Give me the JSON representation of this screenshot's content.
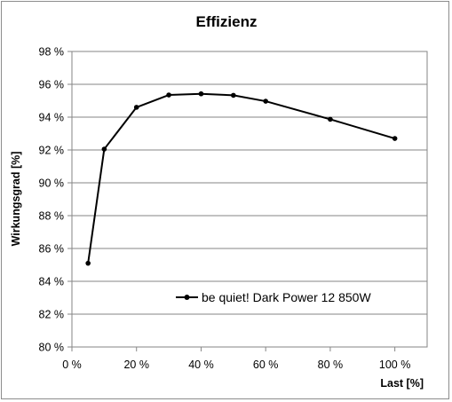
{
  "chart_data": {
    "type": "line",
    "title": "Effizienz",
    "xlabel": "Last [%]",
    "ylabel": "Wirkungsgrad [%]",
    "xlim": [
      0,
      110
    ],
    "ylim": [
      80,
      98
    ],
    "xticks": [
      0,
      20,
      40,
      60,
      80,
      100
    ],
    "yticks": [
      80,
      82,
      84,
      86,
      88,
      90,
      92,
      94,
      96,
      98
    ],
    "xtick_labels": [
      "0 %",
      "20 %",
      "40 %",
      "60 %",
      "80 %",
      "100 %"
    ],
    "ytick_labels": [
      "80 %",
      "82 %",
      "84 %",
      "86 %",
      "88 %",
      "90 %",
      "92 %",
      "94 %",
      "96 %",
      "98 %"
    ],
    "grid": "horizontal",
    "legend_position": "lower-right",
    "series": [
      {
        "name": "be quiet! Dark Power 12 850W",
        "color": "#000000",
        "x": [
          5,
          10,
          20,
          30,
          40,
          50,
          60,
          80,
          100
        ],
        "y": [
          85.1,
          92.05,
          94.6,
          95.35,
          95.42,
          95.33,
          94.97,
          93.87,
          92.7
        ]
      }
    ]
  }
}
